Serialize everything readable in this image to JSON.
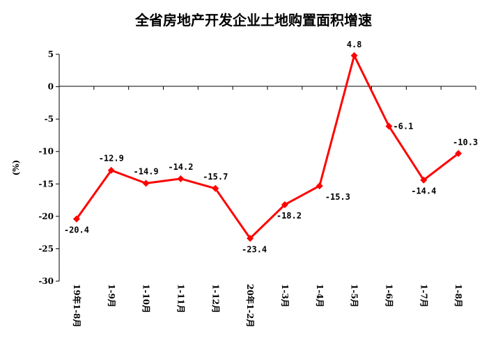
{
  "chart_data": {
    "type": "line",
    "title": "全省房地产开发企业土地购置面积增速",
    "ylabel": "(%)",
    "xlabel": "",
    "ylim": [
      -30,
      5
    ],
    "yticks": [
      5,
      0,
      -5,
      -10,
      -15,
      -20,
      -25,
      -30
    ],
    "grid": false,
    "legend": "none",
    "categories": [
      "19年1-8月",
      "1-9月",
      "1-10月",
      "1-11月",
      "1-12月",
      "20年1-2月",
      "1-3月",
      "1-4月",
      "1-5月",
      "1-6月",
      "1-7月",
      "1-8月"
    ],
    "series": [
      {
        "values": [
          -20.4,
          -12.9,
          -14.9,
          -14.2,
          -15.7,
          -23.4,
          -18.2,
          -15.3,
          4.8,
          -6.1,
          -14.4,
          -10.3
        ],
        "data_labels": [
          "-20.4",
          "-12.9",
          "-14.9",
          "-14.2",
          "-15.7",
          "-23.4",
          "-18.2",
          "-15.3",
          "4.8",
          "-6.1",
          "-14.4",
          "-10.3"
        ],
        "color": "#ff0000"
      }
    ]
  }
}
